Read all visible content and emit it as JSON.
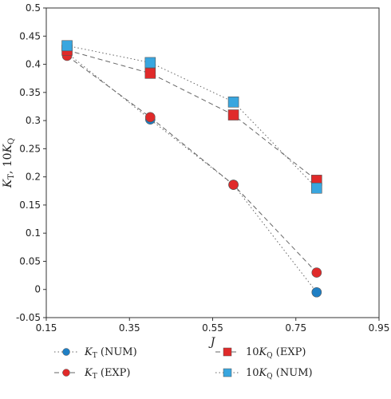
{
  "chart_data": {
    "type": "line",
    "xlabel": "J",
    "ylabel": "K_T, 10K_Q",
    "xlim": [
      0.15,
      0.95
    ],
    "ylim": [
      -0.05,
      0.5
    ],
    "x_ticks": [
      "0.15",
      "0.35",
      "0.55",
      "0.75",
      "0.95"
    ],
    "y_ticks": [
      "-0.05",
      "0",
      "0.05",
      "0.1",
      "0.15",
      "0.2",
      "0.25",
      "0.3",
      "0.35",
      "0.4",
      "0.45",
      "0.5"
    ],
    "grid": false,
    "legend": "bottom",
    "series": [
      {
        "name": "K_T (NUM)",
        "color": "#1f7fc4",
        "marker": "circle",
        "line": "dotted",
        "x": [
          0.2,
          0.4,
          0.6,
          0.8
        ],
        "y": [
          0.42,
          0.302,
          0.186,
          -0.005
        ]
      },
      {
        "name": "K_T (EXP)",
        "color": "#e02a2a",
        "marker": "circle",
        "line": "dashed",
        "x": [
          0.2,
          0.4,
          0.6,
          0.8
        ],
        "y": [
          0.415,
          0.306,
          0.186,
          0.03
        ]
      },
      {
        "name": "10K_Q (EXP)",
        "color": "#e02a2a",
        "marker": "square",
        "line": "dashed",
        "x": [
          0.2,
          0.4,
          0.6,
          0.8
        ],
        "y": [
          0.425,
          0.384,
          0.31,
          0.194
        ]
      },
      {
        "name": "10K_Q (NUM)",
        "color": "#39a6df",
        "marker": "square",
        "line": "dotted",
        "x": [
          0.2,
          0.4,
          0.6,
          0.8
        ],
        "y": [
          0.433,
          0.403,
          0.333,
          0.18
        ]
      }
    ]
  }
}
